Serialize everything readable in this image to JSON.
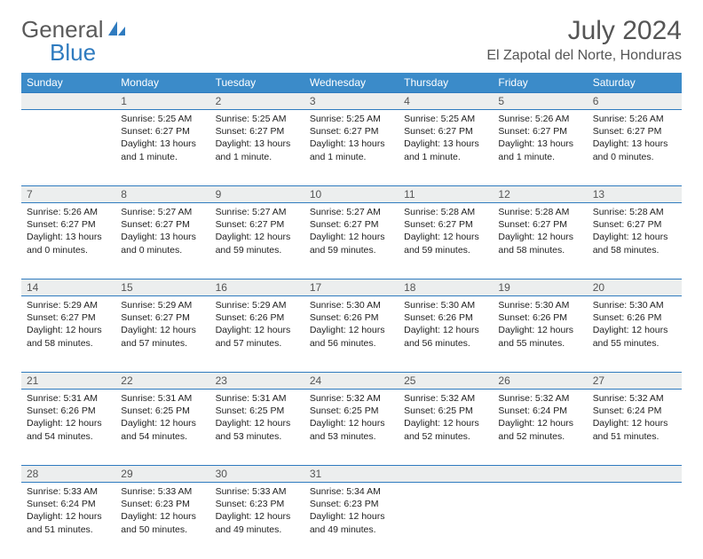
{
  "logo": {
    "word1": "General",
    "word2": "Blue"
  },
  "title": "July 2024",
  "location": "El Zapotal del Norte, Honduras",
  "colors": {
    "header_bg": "#3b8bc9",
    "rule": "#2f7bbf",
    "daynum_bg": "#eceeee",
    "text": "#222222",
    "muted": "#555555"
  },
  "weekdays": [
    "Sunday",
    "Monday",
    "Tuesday",
    "Wednesday",
    "Thursday",
    "Friday",
    "Saturday"
  ],
  "weeks": [
    [
      null,
      {
        "n": "1",
        "sr": "5:25 AM",
        "ss": "6:27 PM",
        "dl": "13 hours and 1 minute."
      },
      {
        "n": "2",
        "sr": "5:25 AM",
        "ss": "6:27 PM",
        "dl": "13 hours and 1 minute."
      },
      {
        "n": "3",
        "sr": "5:25 AM",
        "ss": "6:27 PM",
        "dl": "13 hours and 1 minute."
      },
      {
        "n": "4",
        "sr": "5:25 AM",
        "ss": "6:27 PM",
        "dl": "13 hours and 1 minute."
      },
      {
        "n": "5",
        "sr": "5:26 AM",
        "ss": "6:27 PM",
        "dl": "13 hours and 1 minute."
      },
      {
        "n": "6",
        "sr": "5:26 AM",
        "ss": "6:27 PM",
        "dl": "13 hours and 0 minutes."
      }
    ],
    [
      {
        "n": "7",
        "sr": "5:26 AM",
        "ss": "6:27 PM",
        "dl": "13 hours and 0 minutes."
      },
      {
        "n": "8",
        "sr": "5:27 AM",
        "ss": "6:27 PM",
        "dl": "13 hours and 0 minutes."
      },
      {
        "n": "9",
        "sr": "5:27 AM",
        "ss": "6:27 PM",
        "dl": "12 hours and 59 minutes."
      },
      {
        "n": "10",
        "sr": "5:27 AM",
        "ss": "6:27 PM",
        "dl": "12 hours and 59 minutes."
      },
      {
        "n": "11",
        "sr": "5:28 AM",
        "ss": "6:27 PM",
        "dl": "12 hours and 59 minutes."
      },
      {
        "n": "12",
        "sr": "5:28 AM",
        "ss": "6:27 PM",
        "dl": "12 hours and 58 minutes."
      },
      {
        "n": "13",
        "sr": "5:28 AM",
        "ss": "6:27 PM",
        "dl": "12 hours and 58 minutes."
      }
    ],
    [
      {
        "n": "14",
        "sr": "5:29 AM",
        "ss": "6:27 PM",
        "dl": "12 hours and 58 minutes."
      },
      {
        "n": "15",
        "sr": "5:29 AM",
        "ss": "6:27 PM",
        "dl": "12 hours and 57 minutes."
      },
      {
        "n": "16",
        "sr": "5:29 AM",
        "ss": "6:26 PM",
        "dl": "12 hours and 57 minutes."
      },
      {
        "n": "17",
        "sr": "5:30 AM",
        "ss": "6:26 PM",
        "dl": "12 hours and 56 minutes."
      },
      {
        "n": "18",
        "sr": "5:30 AM",
        "ss": "6:26 PM",
        "dl": "12 hours and 56 minutes."
      },
      {
        "n": "19",
        "sr": "5:30 AM",
        "ss": "6:26 PM",
        "dl": "12 hours and 55 minutes."
      },
      {
        "n": "20",
        "sr": "5:30 AM",
        "ss": "6:26 PM",
        "dl": "12 hours and 55 minutes."
      }
    ],
    [
      {
        "n": "21",
        "sr": "5:31 AM",
        "ss": "6:26 PM",
        "dl": "12 hours and 54 minutes."
      },
      {
        "n": "22",
        "sr": "5:31 AM",
        "ss": "6:25 PM",
        "dl": "12 hours and 54 minutes."
      },
      {
        "n": "23",
        "sr": "5:31 AM",
        "ss": "6:25 PM",
        "dl": "12 hours and 53 minutes."
      },
      {
        "n": "24",
        "sr": "5:32 AM",
        "ss": "6:25 PM",
        "dl": "12 hours and 53 minutes."
      },
      {
        "n": "25",
        "sr": "5:32 AM",
        "ss": "6:25 PM",
        "dl": "12 hours and 52 minutes."
      },
      {
        "n": "26",
        "sr": "5:32 AM",
        "ss": "6:24 PM",
        "dl": "12 hours and 52 minutes."
      },
      {
        "n": "27",
        "sr": "5:32 AM",
        "ss": "6:24 PM",
        "dl": "12 hours and 51 minutes."
      }
    ],
    [
      {
        "n": "28",
        "sr": "5:33 AM",
        "ss": "6:24 PM",
        "dl": "12 hours and 51 minutes."
      },
      {
        "n": "29",
        "sr": "5:33 AM",
        "ss": "6:23 PM",
        "dl": "12 hours and 50 minutes."
      },
      {
        "n": "30",
        "sr": "5:33 AM",
        "ss": "6:23 PM",
        "dl": "12 hours and 49 minutes."
      },
      {
        "n": "31",
        "sr": "5:34 AM",
        "ss": "6:23 PM",
        "dl": "12 hours and 49 minutes."
      },
      null,
      null,
      null
    ]
  ],
  "labels": {
    "sunrise": "Sunrise:",
    "sunset": "Sunset:",
    "daylight": "Daylight:"
  }
}
